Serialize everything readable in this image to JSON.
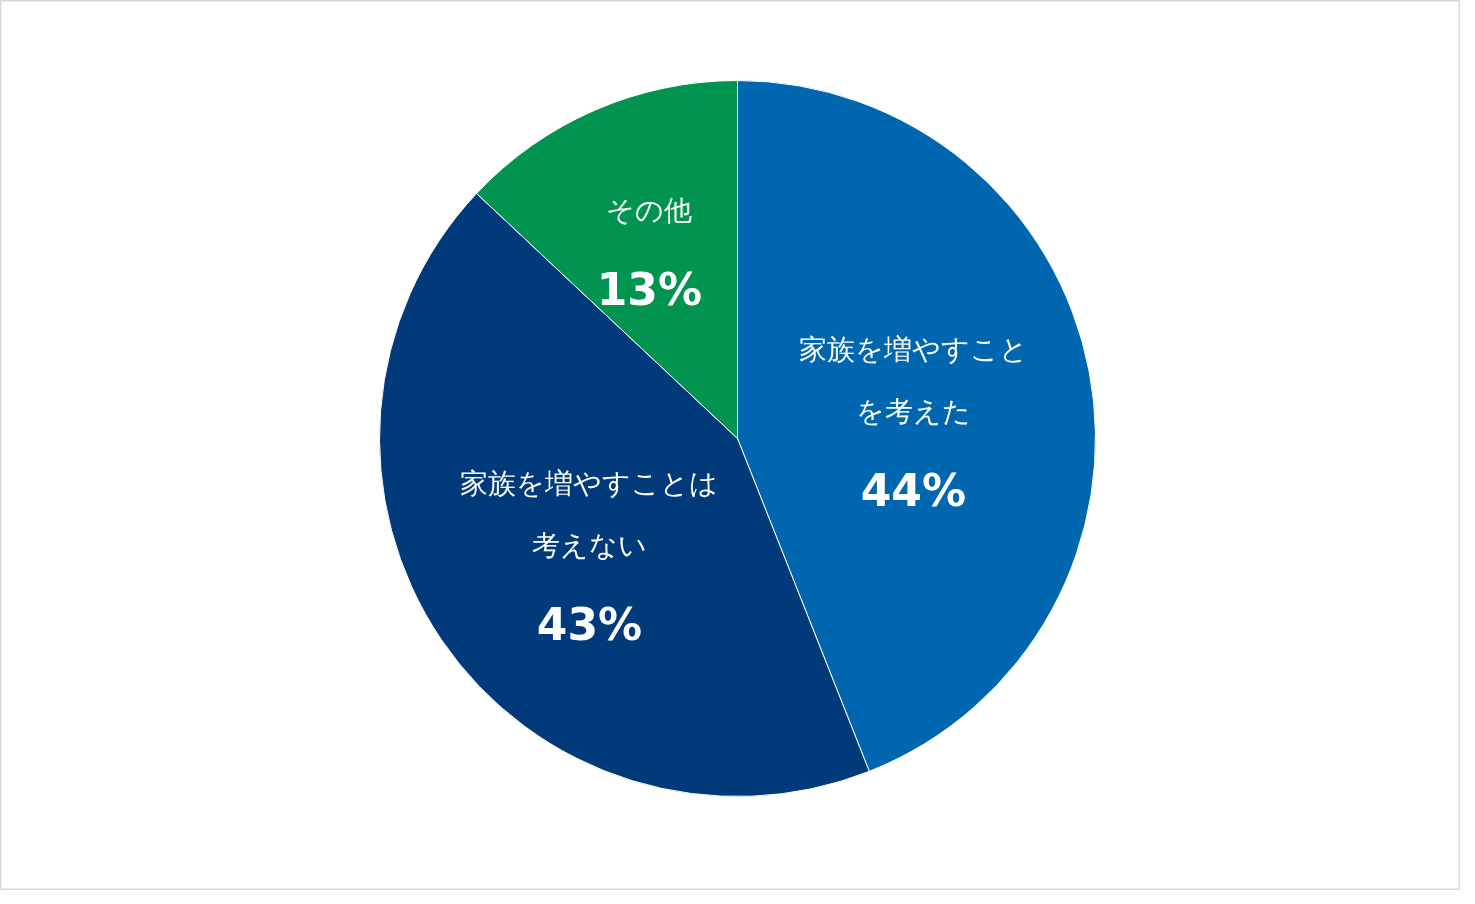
{
  "chart_data": {
    "type": "pie",
    "categories": [
      "家族を増やすことを考えた",
      "家族を増やすことは考えない",
      "その他"
    ],
    "values": [
      44,
      43,
      13
    ],
    "colors": [
      "#0066b0",
      "#003a7a",
      "#009450"
    ],
    "value_labels": [
      "44%",
      "43%",
      "13%"
    ]
  }
}
